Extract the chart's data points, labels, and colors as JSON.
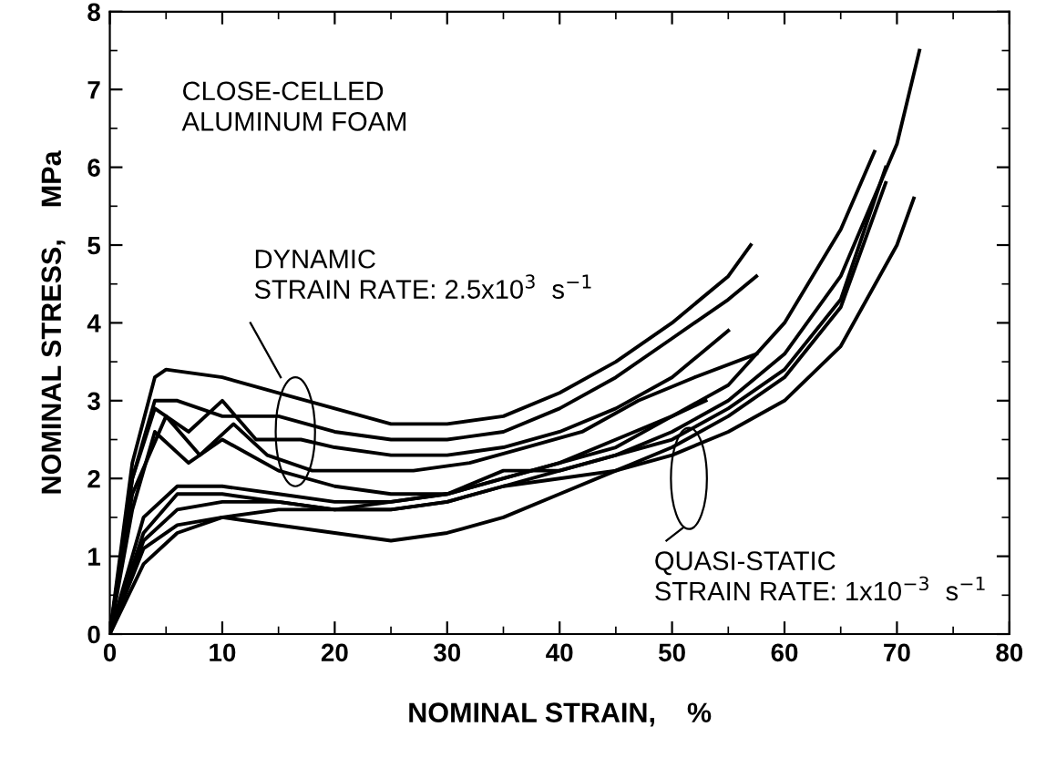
{
  "chart_data": {
    "type": "line",
    "xlabel": "NOMINAL STRAIN,    %",
    "ylabel": "NOMINAL STRESS,    MPa",
    "xlim": [
      0,
      80
    ],
    "ylim": [
      0,
      8
    ],
    "xticks": [
      0,
      10,
      20,
      30,
      40,
      50,
      60,
      70,
      80
    ],
    "yticks": [
      0,
      1,
      2,
      3,
      4,
      5,
      6,
      7,
      8
    ],
    "marker": "none",
    "line_style": "solid",
    "annotations": [
      "CLOSE-CELLED\nALUMINUM FOAM",
      "DYNAMIC\nSTRAIN RATE: 2.5x10$^{3}$  s$^{−1}$",
      "QUASI-STATIC\nSTRAIN RATE: 1x10$^{−3}$  s$^{−1}$"
    ],
    "series": [
      {
        "color": "#000000",
        "x": [
          0,
          2,
          4,
          5,
          10,
          15,
          20,
          25,
          30,
          35,
          40,
          45,
          50,
          55,
          57
        ],
        "values": [
          0,
          2.2,
          3.3,
          3.4,
          3.3,
          3.1,
          2.9,
          2.7,
          2.7,
          2.8,
          3.1,
          3.5,
          4.0,
          4.6,
          5.0
        ]
      },
      {
        "color": "#000000",
        "x": [
          0,
          2,
          4,
          6,
          10,
          15,
          20,
          25,
          30,
          35,
          40,
          45,
          50,
          55,
          57.5
        ],
        "values": [
          0,
          2.0,
          3.0,
          3.0,
          2.8,
          2.8,
          2.6,
          2.5,
          2.5,
          2.6,
          2.9,
          3.3,
          3.8,
          4.3,
          4.6
        ]
      },
      {
        "color": "#000000",
        "x": [
          0,
          2,
          4,
          7,
          10,
          13,
          17,
          20,
          25,
          30,
          35,
          40,
          45,
          50,
          55
        ],
        "values": [
          0,
          2.0,
          2.9,
          2.6,
          3.0,
          2.5,
          2.5,
          2.4,
          2.3,
          2.3,
          2.4,
          2.6,
          2.9,
          3.3,
          3.9
        ]
      },
      {
        "color": "#000000",
        "x": [
          0,
          2,
          5,
          8,
          11,
          14,
          18,
          22,
          27,
          32,
          37,
          42,
          47,
          52,
          57.5
        ],
        "values": [
          0,
          1.8,
          2.8,
          2.3,
          2.7,
          2.3,
          2.1,
          2.1,
          2.1,
          2.2,
          2.4,
          2.6,
          3.0,
          3.3,
          3.6
        ]
      },
      {
        "color": "#000000",
        "x": [
          0,
          2,
          4,
          7,
          10,
          15,
          20,
          25,
          30,
          35,
          40,
          45,
          50,
          53
        ],
        "values": [
          0,
          1.6,
          2.6,
          2.2,
          2.5,
          2.1,
          1.9,
          1.8,
          1.8,
          2.0,
          2.2,
          2.5,
          2.8,
          3.0
        ]
      },
      {
        "color": "#000000",
        "x": [
          0,
          3,
          6,
          10,
          15,
          20,
          25,
          30,
          35,
          40,
          45,
          50,
          55,
          60,
          65,
          68
        ],
        "values": [
          0,
          1.5,
          1.9,
          1.9,
          1.8,
          1.7,
          1.7,
          1.8,
          2.0,
          2.2,
          2.4,
          2.8,
          3.2,
          4.0,
          5.2,
          6.2
        ]
      },
      {
        "color": "#000000",
        "x": [
          0,
          3,
          6,
          10,
          15,
          20,
          25,
          30,
          35,
          40,
          45,
          50,
          55,
          60,
          65,
          70,
          72
        ],
        "values": [
          0,
          1.3,
          1.8,
          1.8,
          1.7,
          1.6,
          1.6,
          1.7,
          1.9,
          2.1,
          2.3,
          2.6,
          3.0,
          3.6,
          4.6,
          6.3,
          7.5
        ]
      },
      {
        "color": "#000000",
        "x": [
          0,
          3,
          6,
          10,
          15,
          20,
          25,
          30,
          35,
          40,
          45,
          50,
          55,
          60,
          65,
          69
        ],
        "values": [
          0,
          1.2,
          1.6,
          1.7,
          1.7,
          1.6,
          1.7,
          1.8,
          2.1,
          2.1,
          2.3,
          2.5,
          2.9,
          3.4,
          4.3,
          6.0
        ]
      },
      {
        "color": "#000000",
        "x": [
          0,
          3,
          6,
          10,
          15,
          20,
          25,
          30,
          35,
          40,
          45,
          50,
          55,
          60,
          65,
          69
        ],
        "values": [
          0,
          1.1,
          1.4,
          1.5,
          1.4,
          1.3,
          1.2,
          1.3,
          1.5,
          1.8,
          2.1,
          2.4,
          2.8,
          3.3,
          4.2,
          5.8
        ]
      },
      {
        "color": "#000000",
        "x": [
          0,
          3,
          6,
          10,
          15,
          20,
          25,
          30,
          35,
          40,
          45,
          50,
          55,
          60,
          65,
          70,
          71.5
        ],
        "values": [
          0,
          0.9,
          1.3,
          1.5,
          1.6,
          1.6,
          1.6,
          1.7,
          1.9,
          2.0,
          2.1,
          2.3,
          2.6,
          3.0,
          3.7,
          5.0,
          5.6
        ]
      }
    ]
  }
}
